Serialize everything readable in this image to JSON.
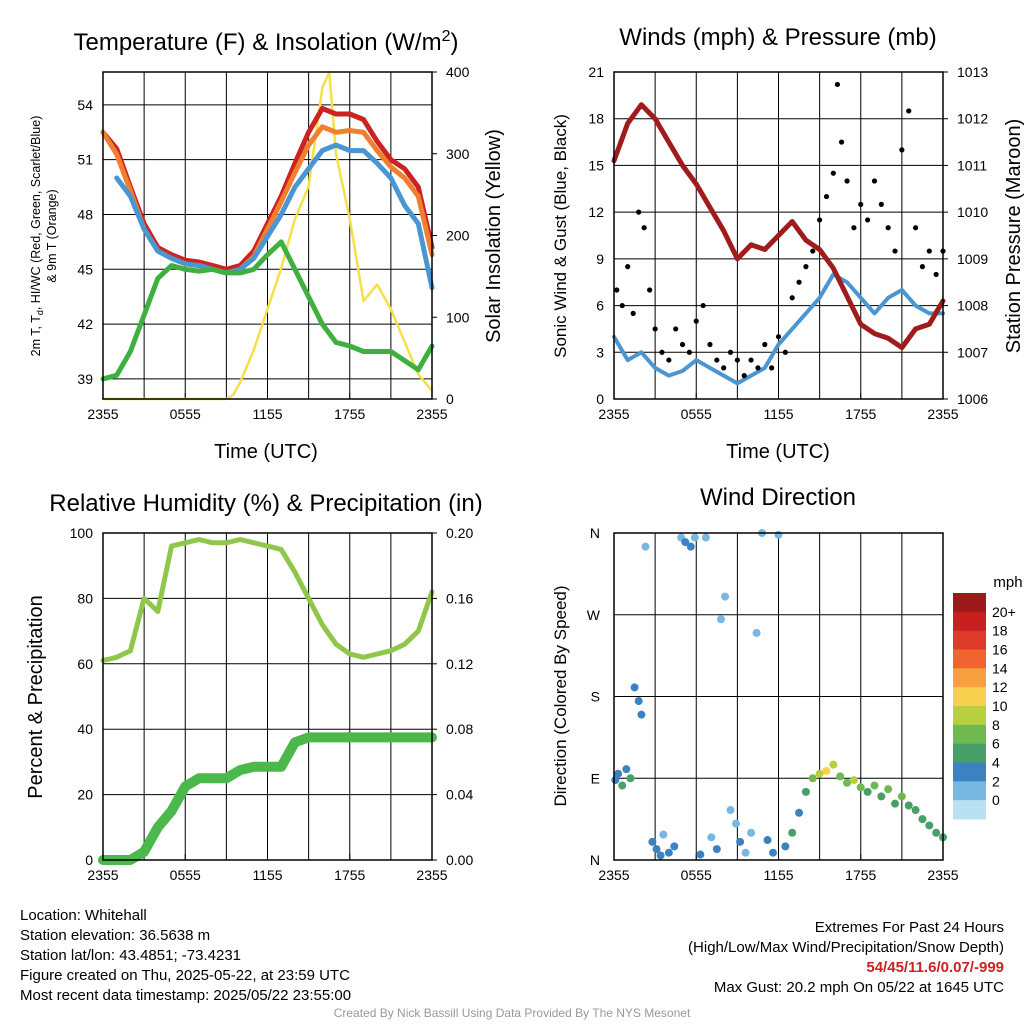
{
  "chart_data": [
    {
      "type": "line",
      "title": "Temperature (F) & Insolation (W/m²)",
      "xlabel": "Time (UTC)",
      "ylabel": "2m T, Td, HI/WC (Red, Green, Scarlet/Blue) & 9m T (Orange)",
      "y2label": "Solar Insolation (Yellow)",
      "x_ticks": [
        "2355",
        "0555",
        "1155",
        "1755",
        "2355"
      ],
      "y_ticks": [
        39,
        42,
        45,
        48,
        51,
        54
      ],
      "y2_ticks": [
        0,
        100,
        200,
        300,
        400
      ],
      "ylim": [
        37.9,
        55.8
      ],
      "y2lim": [
        0,
        400
      ],
      "series": [
        {
          "name": "2m T",
          "color": "#cc2222",
          "axis": "left",
          "x": [
            0,
            1,
            2,
            3,
            4,
            5,
            6,
            7,
            8,
            9,
            10,
            11,
            12,
            13,
            14,
            15,
            16,
            17,
            18,
            19,
            20,
            21,
            22,
            23,
            24
          ],
          "values": [
            52.5,
            51.6,
            49.5,
            47.5,
            46.2,
            45.8,
            45.5,
            45.4,
            45.2,
            45.0,
            45.2,
            46.0,
            47.5,
            49.0,
            50.8,
            52.5,
            53.8,
            53.5,
            53.5,
            53.2,
            52.0,
            51.0,
            50.5,
            49.5,
            46.2
          ]
        },
        {
          "name": "9m T",
          "color": "#f08030",
          "axis": "left",
          "x": [
            0,
            1,
            2,
            3,
            4,
            5,
            6,
            7,
            8,
            9,
            10,
            11,
            12,
            13,
            14,
            15,
            16,
            17,
            18,
            19,
            20,
            21,
            22,
            23,
            24
          ],
          "values": [
            52.5,
            51.3,
            49.3,
            47.2,
            46.0,
            45.6,
            45.3,
            45.2,
            45.0,
            44.8,
            45.0,
            45.7,
            47.2,
            48.7,
            50.3,
            51.8,
            52.8,
            52.5,
            52.6,
            52.5,
            51.5,
            50.6,
            50.0,
            49.0,
            45.8
          ]
        },
        {
          "name": "HI/WC",
          "color": "#4a96d2",
          "axis": "left",
          "x": [
            1,
            2,
            3,
            4,
            5,
            6,
            7,
            8,
            9,
            10,
            11,
            12,
            13,
            14,
            15,
            16,
            17,
            18,
            19,
            20,
            21,
            22,
            23,
            24
          ],
          "values": [
            50.0,
            49.0,
            47.2,
            46.0,
            45.6,
            45.3,
            45.2,
            45.0,
            44.8,
            45.0,
            45.6,
            46.8,
            48.0,
            49.5,
            50.5,
            51.5,
            51.8,
            51.5,
            51.5,
            50.8,
            50.0,
            48.5,
            47.5,
            44.0
          ]
        },
        {
          "name": "Td",
          "color": "#3fb03f",
          "axis": "left",
          "x": [
            0,
            1,
            2,
            3,
            4,
            5,
            6,
            7,
            8,
            9,
            10,
            11,
            12,
            13,
            14,
            15,
            16,
            17,
            18,
            19,
            20,
            21,
            22,
            23,
            24
          ],
          "values": [
            39.0,
            39.2,
            40.5,
            42.5,
            44.5,
            45.2,
            45.0,
            44.9,
            45.0,
            44.8,
            44.8,
            45.0,
            45.8,
            46.5,
            45.0,
            43.5,
            42.0,
            41.0,
            40.8,
            40.5,
            40.5,
            40.5,
            40.0,
            39.5,
            40.8
          ]
        },
        {
          "name": "Solar Insolation",
          "color": "#f5e04a",
          "axis": "right",
          "x": [
            0,
            1,
            2,
            3,
            4,
            5,
            6,
            7,
            8,
            9,
            9.5,
            10,
            11,
            12,
            13,
            14,
            15,
            16,
            16.5,
            17,
            18,
            19,
            20,
            21,
            22,
            23,
            24
          ],
          "values": [
            0,
            0,
            0,
            0,
            0,
            0,
            0,
            0,
            0,
            0,
            5,
            20,
            60,
            110,
            160,
            220,
            260,
            380,
            400,
            300,
            220,
            120,
            140,
            110,
            70,
            30,
            10
          ]
        }
      ]
    },
    {
      "type": "line",
      "title": "Winds (mph) & Pressure (mb)",
      "xlabel": "Time (UTC)",
      "ylabel": "Sonic Wind & Gust (Blue, Black)",
      "y2label": "Station Pressure (Maroon)",
      "x_ticks": [
        "2355",
        "0555",
        "1155",
        "1755",
        "2355"
      ],
      "y_ticks": [
        0,
        3,
        6,
        9,
        12,
        15,
        18,
        21
      ],
      "y2_ticks": [
        1006,
        1007,
        1008,
        1009,
        1010,
        1011,
        1012,
        1013
      ],
      "ylim": [
        0,
        21
      ],
      "y2lim": [
        1006,
        1013
      ],
      "series": [
        {
          "name": "Sonic Wind",
          "color": "#4a96d2",
          "axis": "left",
          "x": [
            0,
            1,
            2,
            3,
            4,
            5,
            6,
            7,
            8,
            9,
            10,
            11,
            12,
            13,
            14,
            15,
            16,
            17,
            18,
            19,
            20,
            21,
            22,
            23,
            24
          ],
          "values": [
            4.0,
            2.5,
            3.0,
            2.0,
            1.5,
            1.8,
            2.5,
            2.0,
            1.5,
            1.0,
            1.5,
            2.0,
            3.5,
            4.5,
            5.5,
            6.5,
            8.0,
            7.5,
            6.5,
            5.5,
            6.5,
            7.0,
            6.0,
            5.5,
            5.5
          ]
        },
        {
          "name": "Gust",
          "color": "#000000",
          "axis": "left",
          "style": "points",
          "x": [
            0.2,
            0.6,
            1.0,
            1.4,
            1.8,
            2.2,
            2.6,
            3.0,
            3.5,
            4.0,
            4.5,
            5.0,
            5.5,
            6.0,
            6.5,
            7.0,
            7.5,
            8.0,
            8.5,
            9.0,
            9.5,
            10.0,
            10.5,
            11.0,
            11.5,
            12.0,
            12.5,
            13.0,
            13.5,
            14.0,
            14.5,
            15.0,
            15.5,
            16.0,
            16.3,
            16.6,
            17.0,
            17.5,
            18.0,
            18.5,
            19.0,
            19.5,
            20.0,
            20.5,
            21.0,
            21.5,
            22.0,
            22.5,
            23.0,
            23.5,
            24.0
          ],
          "values": [
            7.0,
            6.0,
            8.5,
            5.5,
            12.0,
            11.0,
            7.0,
            4.5,
            3.0,
            2.5,
            4.5,
            3.5,
            3.0,
            5.0,
            6.0,
            3.5,
            2.5,
            2.0,
            3.0,
            2.5,
            1.5,
            2.5,
            2.0,
            3.5,
            2.0,
            4.0,
            3.0,
            6.5,
            7.5,
            8.5,
            9.5,
            11.5,
            13.0,
            14.5,
            20.2,
            16.5,
            14.0,
            11.0,
            12.5,
            11.5,
            14.0,
            12.5,
            11.0,
            9.5,
            16.0,
            18.5,
            11.0,
            8.5,
            9.5,
            8.0,
            9.5
          ]
        },
        {
          "name": "Station Pressure",
          "color": "#a01c1c",
          "axis": "right",
          "x": [
            0,
            1,
            2,
            3,
            4,
            5,
            6,
            7,
            8,
            9,
            10,
            11,
            12,
            13,
            14,
            15,
            16,
            17,
            18,
            19,
            20,
            21,
            22,
            23,
            24
          ],
          "values": [
            1011.1,
            1011.9,
            1012.3,
            1012.0,
            1011.5,
            1011.0,
            1010.6,
            1010.1,
            1009.6,
            1009.0,
            1009.3,
            1009.2,
            1009.5,
            1009.8,
            1009.4,
            1009.2,
            1008.8,
            1008.2,
            1007.6,
            1007.4,
            1007.3,
            1007.1,
            1007.5,
            1007.6,
            1008.1
          ]
        }
      ]
    },
    {
      "type": "line",
      "title": "Relative Humidity (%) & Precipitation (in)",
      "xlabel": "",
      "ylabel": "Percent & Precipitation",
      "x_ticks": [
        "2355",
        "0555",
        "1155",
        "1755",
        "2355"
      ],
      "y_ticks": [
        0,
        20,
        40,
        60,
        80,
        100
      ],
      "y2_ticks": [
        "0.00",
        "0.04",
        "0.08",
        "0.12",
        "0.16",
        "0.20"
      ],
      "ylim": [
        0,
        100
      ],
      "y2lim": [
        0,
        0.2
      ],
      "series": [
        {
          "name": "Relative Humidity",
          "color": "#8fc74a",
          "axis": "left",
          "x": [
            0,
            1,
            2,
            3,
            4,
            5,
            6,
            7,
            8,
            9,
            10,
            11,
            12,
            13,
            14,
            15,
            16,
            17,
            18,
            19,
            20,
            21,
            22,
            23,
            24
          ],
          "values": [
            61,
            62,
            64,
            80,
            76,
            96,
            97,
            98,
            97,
            97,
            98,
            97,
            96,
            95,
            88,
            80,
            72,
            66,
            63,
            62,
            63,
            64,
            66,
            70,
            82
          ]
        },
        {
          "name": "Precipitation",
          "color": "#4ab84a",
          "axis": "right",
          "x": [
            0,
            1,
            2,
            3,
            4,
            5,
            6,
            7,
            8,
            9,
            10,
            11,
            12,
            13,
            14,
            15,
            16,
            17,
            18,
            19,
            20,
            21,
            22,
            23,
            24
          ],
          "values": [
            0.0,
            0.0,
            0.0,
            0.005,
            0.02,
            0.03,
            0.045,
            0.05,
            0.05,
            0.05,
            0.055,
            0.057,
            0.057,
            0.057,
            0.072,
            0.075,
            0.075,
            0.075,
            0.075,
            0.075,
            0.075,
            0.075,
            0.075,
            0.075,
            0.075
          ]
        }
      ]
    },
    {
      "type": "scatter",
      "title": "Wind Direction",
      "xlabel": "",
      "ylabel": "Direction (Colored By Speed)",
      "x_ticks": [
        "2355",
        "0555",
        "1155",
        "1755",
        "2355"
      ],
      "y_ticks": [
        "N",
        "E",
        "S",
        "W",
        "N"
      ],
      "ylim": [
        0,
        360
      ],
      "colorbar": {
        "title": "mph",
        "labels": [
          "20+",
          "18",
          "16",
          "14",
          "12",
          "10",
          "8",
          "6",
          "4",
          "2",
          "0"
        ],
        "colors": [
          "#9e1a1a",
          "#c8201f",
          "#dc3b2a",
          "#f06430",
          "#f8a040",
          "#f8d050",
          "#b8d040",
          "#70b850",
          "#48a068",
          "#3c82c0",
          "#78b8e0",
          "#b8e2f4"
        ]
      },
      "points": [
        {
          "x": 0.1,
          "dir": 88,
          "speed": 4
        },
        {
          "x": 0.3,
          "dir": 95,
          "speed": 3
        },
        {
          "x": 0.6,
          "dir": 82,
          "speed": 5
        },
        {
          "x": 0.9,
          "dir": 100,
          "speed": 3
        },
        {
          "x": 1.2,
          "dir": 90,
          "speed": 6
        },
        {
          "x": 1.5,
          "dir": 190,
          "speed": 3
        },
        {
          "x": 1.8,
          "dir": 175,
          "speed": 4
        },
        {
          "x": 2.0,
          "dir": 160,
          "speed": 3
        },
        {
          "x": 2.3,
          "dir": 345,
          "speed": 1
        },
        {
          "x": 2.8,
          "dir": 20,
          "speed": 3
        },
        {
          "x": 3.1,
          "dir": 12,
          "speed": 4
        },
        {
          "x": 3.4,
          "dir": 5,
          "speed": 3
        },
        {
          "x": 3.6,
          "dir": 28,
          "speed": 2
        },
        {
          "x": 4.0,
          "dir": 8,
          "speed": 4
        },
        {
          "x": 4.4,
          "dir": 15,
          "speed": 3
        },
        {
          "x": 4.9,
          "dir": 355,
          "speed": 2
        },
        {
          "x": 5.2,
          "dir": 350,
          "speed": 3
        },
        {
          "x": 5.6,
          "dir": 345,
          "speed": 3
        },
        {
          "x": 5.9,
          "dir": 355,
          "speed": 2
        },
        {
          "x": 6.3,
          "dir": 6,
          "speed": 3
        },
        {
          "x": 6.7,
          "dir": 355,
          "speed": 2
        },
        {
          "x": 7.1,
          "dir": 25,
          "speed": 2
        },
        {
          "x": 7.5,
          "dir": 12,
          "speed": 3
        },
        {
          "x": 7.8,
          "dir": 265,
          "speed": 1
        },
        {
          "x": 8.1,
          "dir": 290,
          "speed": 1
        },
        {
          "x": 8.5,
          "dir": 55,
          "speed": 2
        },
        {
          "x": 8.9,
          "dir": 40,
          "speed": 1
        },
        {
          "x": 9.2,
          "dir": 20,
          "speed": 3
        },
        {
          "x": 9.6,
          "dir": 8,
          "speed": 2
        },
        {
          "x": 10.0,
          "dir": 30,
          "speed": 2
        },
        {
          "x": 10.4,
          "dir": 250,
          "speed": 2
        },
        {
          "x": 10.8,
          "dir": 360,
          "speed": 2
        },
        {
          "x": 11.2,
          "dir": 22,
          "speed": 3
        },
        {
          "x": 11.6,
          "dir": 8,
          "speed": 4
        },
        {
          "x": 12.0,
          "dir": 358,
          "speed": 2
        },
        {
          "x": 12.5,
          "dir": 15,
          "speed": 4
        },
        {
          "x": 13.0,
          "dir": 30,
          "speed": 5
        },
        {
          "x": 13.5,
          "dir": 52,
          "speed": 4
        },
        {
          "x": 14.0,
          "dir": 75,
          "speed": 6
        },
        {
          "x": 14.5,
          "dir": 90,
          "speed": 7
        },
        {
          "x": 15.0,
          "dir": 95,
          "speed": 10
        },
        {
          "x": 15.5,
          "dir": 98,
          "speed": 12
        },
        {
          "x": 16.0,
          "dir": 105,
          "speed": 9
        },
        {
          "x": 16.5,
          "dir": 92,
          "speed": 8
        },
        {
          "x": 17.0,
          "dir": 85,
          "speed": 7
        },
        {
          "x": 17.5,
          "dir": 88,
          "speed": 9
        },
        {
          "x": 18.0,
          "dir": 80,
          "speed": 8
        },
        {
          "x": 18.5,
          "dir": 75,
          "speed": 6
        },
        {
          "x": 19.0,
          "dir": 82,
          "speed": 7
        },
        {
          "x": 19.5,
          "dir": 70,
          "speed": 6
        },
        {
          "x": 20.0,
          "dir": 78,
          "speed": 8
        },
        {
          "x": 20.5,
          "dir": 62,
          "speed": 5
        },
        {
          "x": 21.0,
          "dir": 70,
          "speed": 7
        },
        {
          "x": 21.5,
          "dir": 60,
          "speed": 6
        },
        {
          "x": 22.0,
          "dir": 55,
          "speed": 5
        },
        {
          "x": 22.5,
          "dir": 45,
          "speed": 6
        },
        {
          "x": 23.0,
          "dir": 38,
          "speed": 5
        },
        {
          "x": 23.5,
          "dir": 30,
          "speed": 6
        },
        {
          "x": 24.0,
          "dir": 25,
          "speed": 5
        }
      ]
    }
  ],
  "footer_left": [
    "Location: Whitehall",
    "Station elevation: 36.5638 m",
    "Station lat/lon: 43.4851; -73.4231",
    "Figure created on Thu, 2025-05-22, at 23:59 UTC",
    "Most recent data timestamp: 2025/05/22 23:55:00"
  ],
  "footer_right": {
    "line1": "Extremes For Past 24 Hours",
    "line2": "(High/Low/Max Wind/Precipitation/Snow Depth)",
    "extremes": "54/45/11.6/0.07/-999",
    "gust": "Max Gust: 20.2 mph On 05/22 at 1645 UTC"
  },
  "credit": "Created By Nick Bassill Using Data Provided By The NYS Mesonet"
}
